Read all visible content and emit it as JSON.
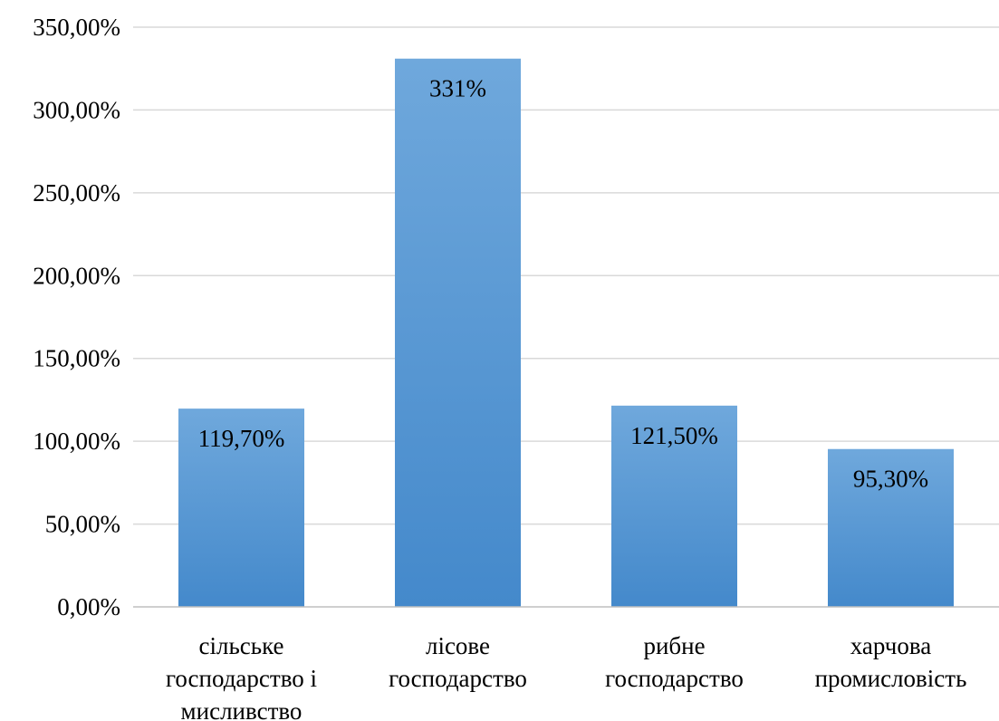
{
  "chart_data": {
    "type": "bar",
    "title": "",
    "xlabel": "",
    "ylabel": "",
    "categories": [
      [
        "сільське",
        "господарство і",
        "мисливство"
      ],
      [
        "лісове",
        "господарство"
      ],
      [
        "рибне",
        "господарство"
      ],
      [
        "харчова",
        "промисловість"
      ]
    ],
    "values": [
      119.7,
      331,
      121.5,
      95.3
    ],
    "data_labels": [
      "119,70%",
      "331%",
      "121,50%",
      "95,30%"
    ],
    "ylim": [
      0,
      350
    ],
    "y_ticks": [
      0,
      50,
      100,
      150,
      200,
      250,
      300,
      350
    ],
    "y_tick_labels": [
      "0,00%",
      "50,00%",
      "100,00%",
      "150,00%",
      "200,00%",
      "250,00%",
      "300,00%",
      "350,00%"
    ],
    "grid": true,
    "legend": "none",
    "colors": {
      "bar_top": "#6FA8DC",
      "bar_bottom": "#4489CB",
      "grid": "#d9d9d9",
      "axis": "#bfbfbf"
    }
  }
}
